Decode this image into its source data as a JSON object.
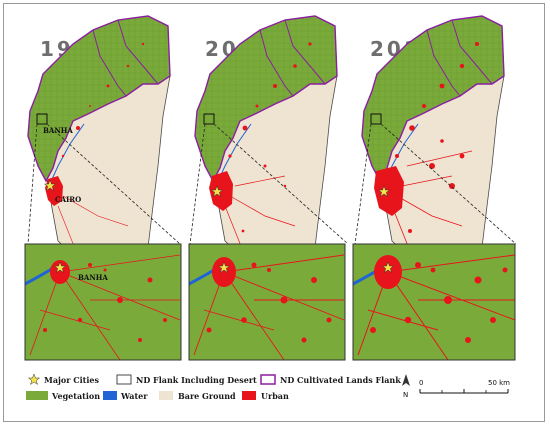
{
  "years": [
    "1988",
    "2008",
    "2017"
  ],
  "cities": {
    "banha": "BANHA",
    "cairo": "CAIRO"
  },
  "legend": {
    "major_cities": "Major Cities",
    "nd_flank": "ND Flank Including Desert",
    "nd_cultivated": "ND Cultivated Lands Flank",
    "vegetation": "Vegetation",
    "water": "Water",
    "bare_ground": "Bare Ground",
    "urban": "Urban"
  },
  "scale": {
    "start": "0",
    "end": "50 km"
  },
  "north": "N",
  "colors": {
    "vegetation": "#7aab3a",
    "water": "#1f63d6",
    "bare_ground": "#efe3d1",
    "urban": "#e8141c",
    "cultivated_outline": "#8a1fa0",
    "flank_outline": "#4a4a4a",
    "star": "#f2e14a"
  }
}
